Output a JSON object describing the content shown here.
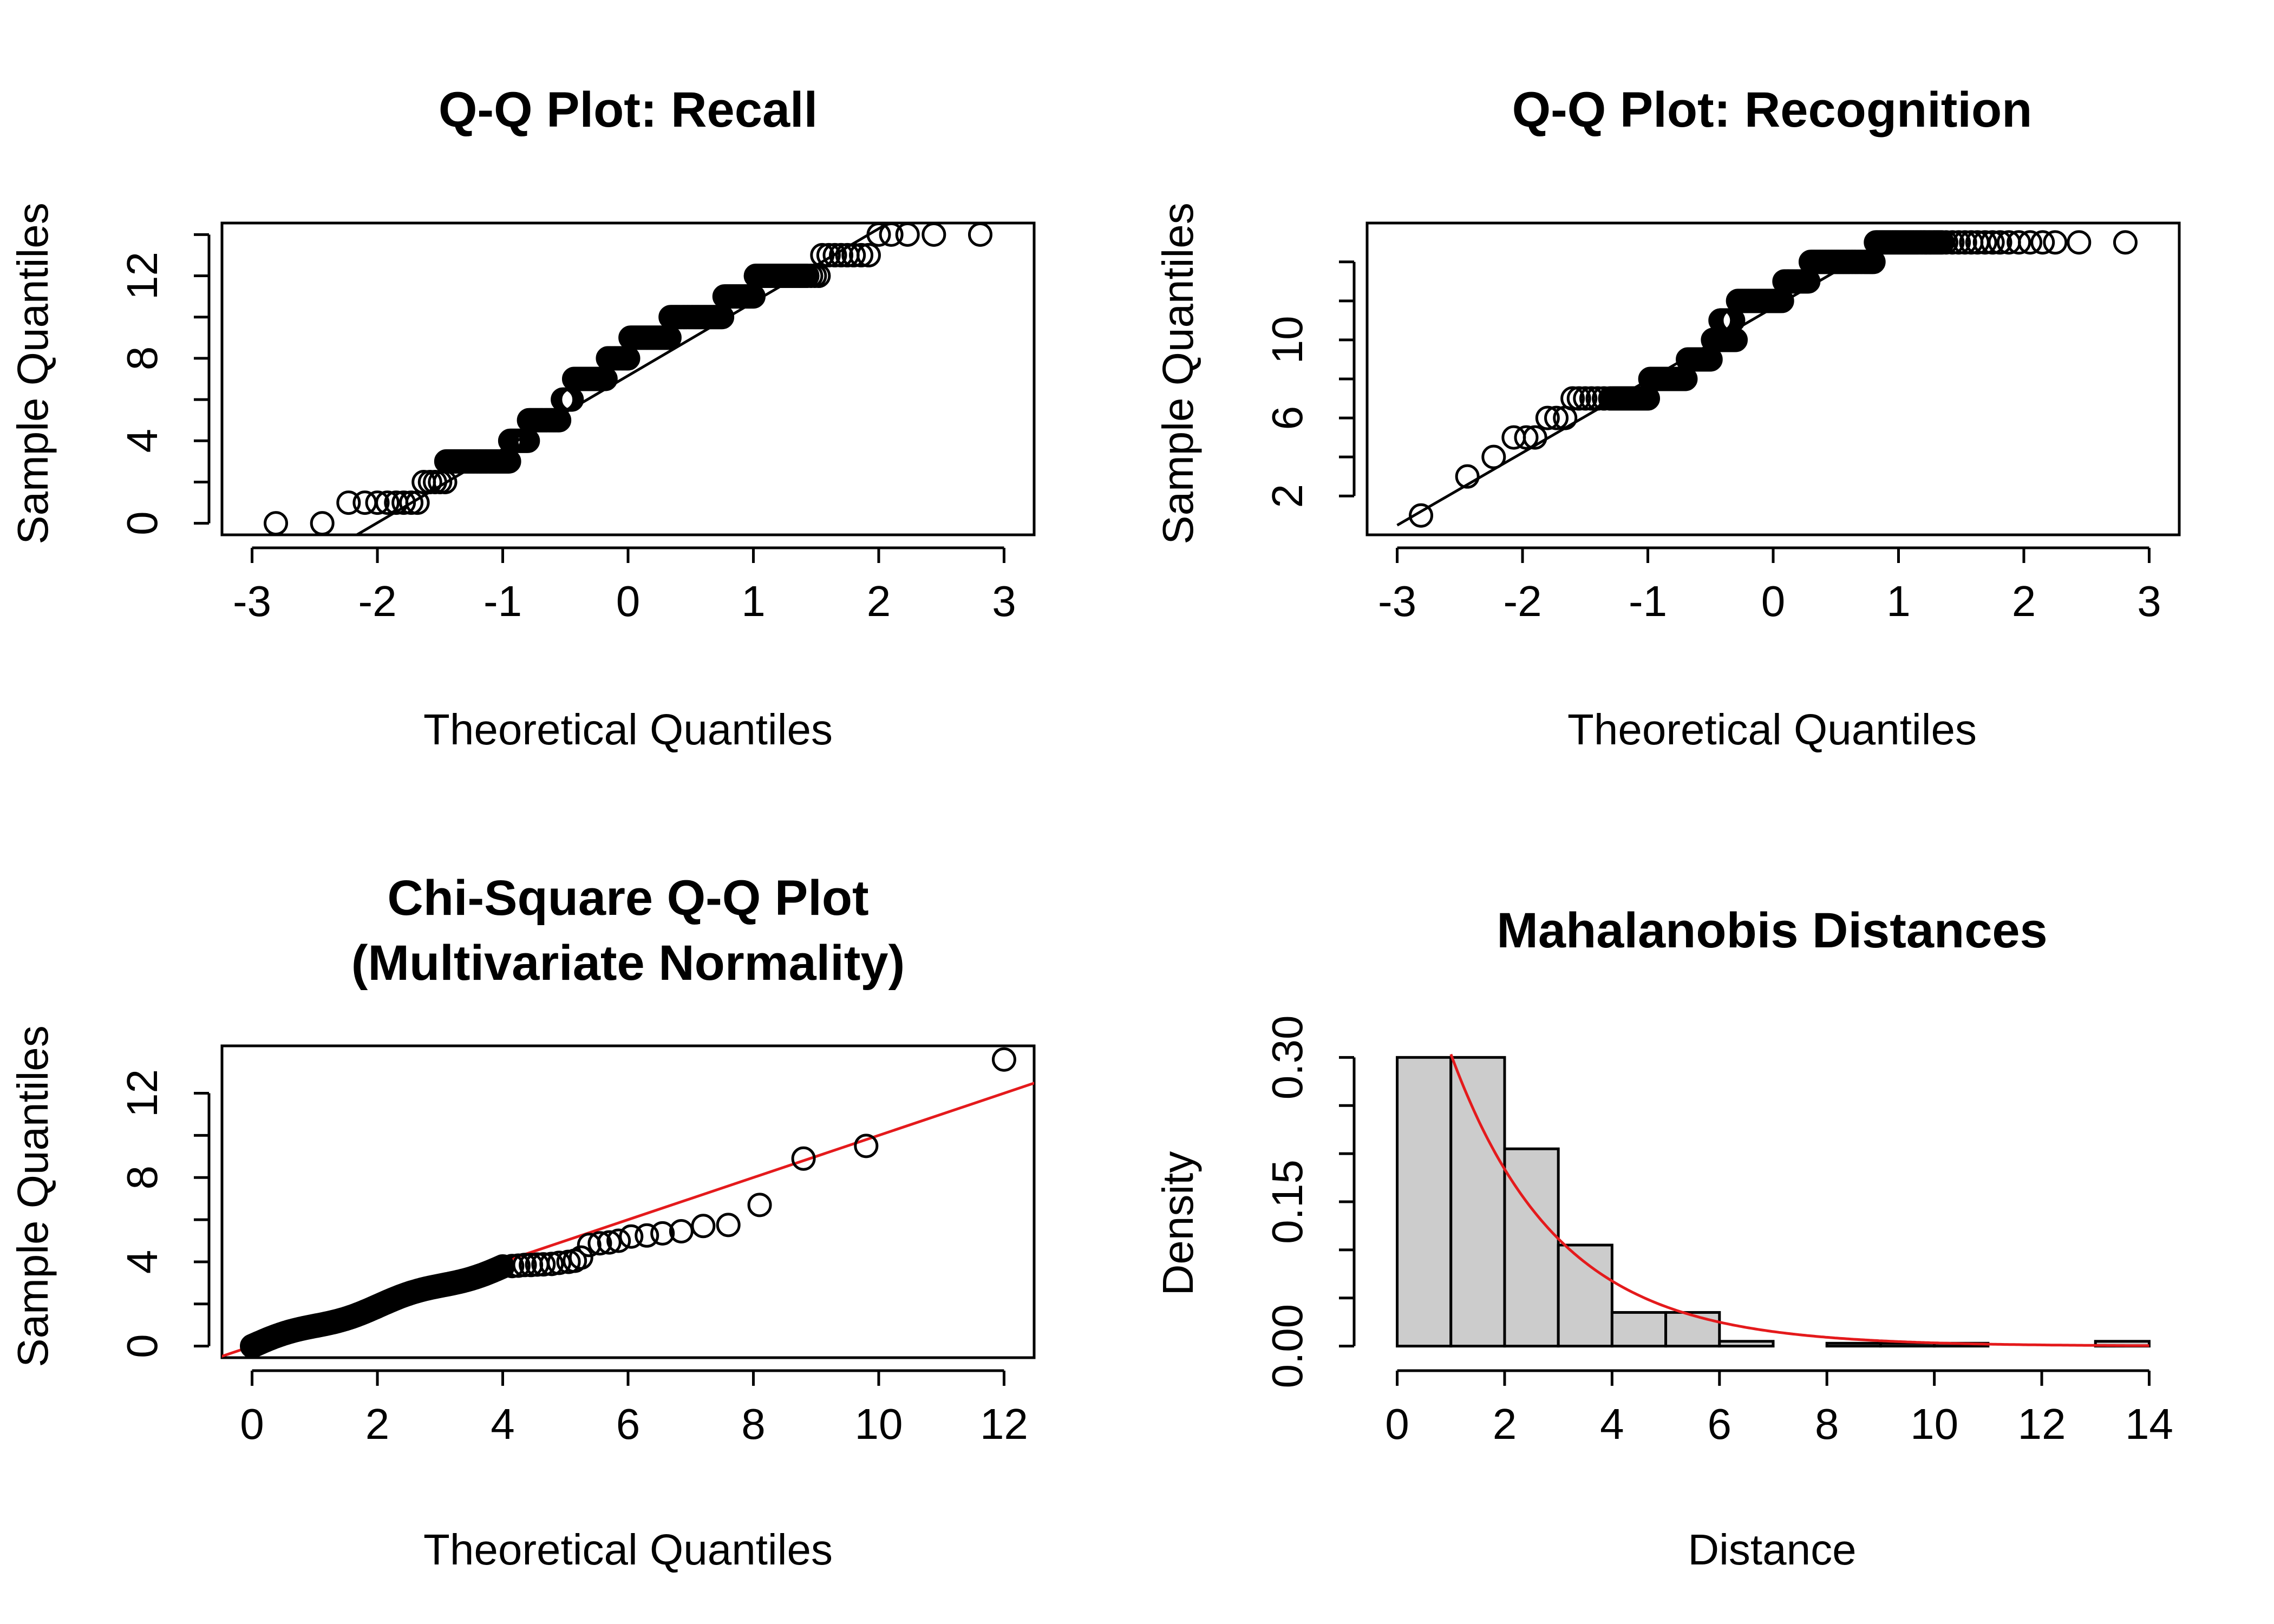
{
  "chart_data": [
    {
      "type": "scatter",
      "title": "Q-Q Plot: Recall",
      "xlabel": "Theoretical Quantiles",
      "ylabel": "Sample Quantiles",
      "xlim": [
        -3,
        3
      ],
      "ylim": [
        0,
        14
      ],
      "xticks": [
        "-3",
        "-2",
        "-1",
        "0",
        "1",
        "2",
        "3"
      ],
      "yticks": [
        "0",
        "4",
        "8",
        "12"
      ],
      "ytick_values": [
        0,
        4,
        8,
        12
      ],
      "yminor_ticks": [
        2,
        6,
        10,
        14
      ],
      "reference_line": {
        "x": [
          -2.4,
          2.2
        ],
        "y": [
          -1.4,
          15.0
        ],
        "color": "#000000"
      },
      "value_groups": [
        {
          "value": 0,
          "x": [
            -2.81,
            -2.44
          ]
        },
        {
          "value": 1,
          "x": [
            -2.23,
            -2.1,
            -2.0,
            -1.92,
            -1.85,
            -1.79,
            -1.73,
            -1.68
          ]
        },
        {
          "value": 2,
          "x": [
            -1.63,
            -1.58,
            -1.54,
            -1.5,
            -1.46
          ]
        },
        {
          "value": 3,
          "from": -1.45,
          "to": -0.95
        },
        {
          "value": 4,
          "from": -0.94,
          "to": -0.8
        },
        {
          "value": 5,
          "from": -0.79,
          "to": -0.55
        },
        {
          "value": 6,
          "from": -0.52,
          "to": -0.45
        },
        {
          "value": 7,
          "from": -0.43,
          "to": -0.18
        },
        {
          "value": 8,
          "from": -0.16,
          "to": 0.0
        },
        {
          "value": 9,
          "from": 0.02,
          "to": 0.33
        },
        {
          "value": 10,
          "from": 0.34,
          "to": 0.75
        },
        {
          "value": 11,
          "from": 0.77,
          "to": 1.0
        },
        {
          "value": 12,
          "from": 1.02,
          "to": 1.43
        },
        {
          "value": 12,
          "x": [
            1.46,
            1.49,
            1.52
          ]
        },
        {
          "value": 13,
          "x": [
            1.55,
            1.6,
            1.65,
            1.7,
            1.75,
            1.8,
            1.86,
            1.92
          ]
        },
        {
          "value": 14,
          "x": [
            2.0,
            2.1,
            2.23,
            2.44,
            2.81
          ]
        }
      ]
    },
    {
      "type": "scatter",
      "title": "Q-Q Plot: Recognition",
      "xlabel": "Theoretical Quantiles",
      "ylabel": "Sample Quantiles",
      "xlim": [
        -3,
        3
      ],
      "ylim": [
        0.6,
        15.4
      ],
      "xticks": [
        "-3",
        "-2",
        "-1",
        "0",
        "1",
        "2",
        "3"
      ],
      "yticks": [
        "2",
        "6",
        "10"
      ],
      "ytick_values": [
        2,
        6,
        10
      ],
      "yminor_ticks": [
        4,
        8,
        12,
        14
      ],
      "reference_line": {
        "x": [
          -3.0,
          0.9
        ],
        "y": [
          0.5,
          15.0
        ],
        "color": "#000000"
      },
      "value_groups": [
        {
          "value": 1,
          "x": [
            -2.81
          ]
        },
        {
          "value": 3,
          "x": [
            -2.44
          ]
        },
        {
          "value": 4,
          "x": [
            -2.23
          ]
        },
        {
          "value": 5,
          "x": [
            -2.07,
            -1.97,
            -1.9
          ]
        },
        {
          "value": 6,
          "x": [
            -1.8,
            -1.73,
            -1.66
          ]
        },
        {
          "value": 7,
          "x": [
            -1.6,
            -1.55,
            -1.5,
            -1.45,
            -1.4,
            -1.35,
            -1.3
          ]
        },
        {
          "value": 7,
          "from": -1.28,
          "to": -1.0
        },
        {
          "value": 8,
          "from": -0.98,
          "to": -0.7
        },
        {
          "value": 9,
          "from": -0.68,
          "to": -0.5
        },
        {
          "value": 10,
          "from": -0.48,
          "to": -0.3
        },
        {
          "value": 11,
          "from": -0.42,
          "to": -0.32
        },
        {
          "value": 12,
          "from": -0.28,
          "to": 0.07
        },
        {
          "value": 13,
          "from": 0.09,
          "to": 0.28
        },
        {
          "value": 14,
          "from": 0.3,
          "to": 0.8
        },
        {
          "value": 15,
          "from": 0.82,
          "to": 1.35
        },
        {
          "value": 15,
          "x": [
            1.38,
            1.43,
            1.48,
            1.53,
            1.58,
            1.63,
            1.69,
            1.75,
            1.81,
            1.88,
            1.96,
            2.05,
            2.15,
            2.25,
            2.44,
            2.81
          ]
        }
      ]
    },
    {
      "type": "scatter",
      "title": "Chi-Square Q-Q Plot",
      "subtitle": "(Multivariate Normality)",
      "xlabel": "Theoretical Quantiles",
      "ylabel": "Sample Quantiles",
      "xlim": [
        0,
        12
      ],
      "ylim": [
        0,
        13.7
      ],
      "xticks": [
        "0",
        "2",
        "4",
        "6",
        "8",
        "10",
        "12"
      ],
      "yticks": [
        "0",
        "4",
        "8",
        "12"
      ],
      "ytick_values": [
        0,
        4,
        8,
        12
      ],
      "yminor_ticks": [
        2,
        6,
        10
      ],
      "reference_line": {
        "x": [
          -0.5,
          12.5
        ],
        "y": [
          -0.5,
          12.5
        ],
        "color": "#e41a1c"
      },
      "dense_curve": {
        "from": 0.0,
        "to": 4.0,
        "points": 150
      },
      "points": [
        [
          4.15,
          3.8
        ],
        [
          4.25,
          3.82
        ],
        [
          4.35,
          3.85
        ],
        [
          4.45,
          3.85
        ],
        [
          4.55,
          3.87
        ],
        [
          4.65,
          3.88
        ],
        [
          4.78,
          3.9
        ],
        [
          4.9,
          3.95
        ],
        [
          5.05,
          4.0
        ],
        [
          5.15,
          4.05
        ],
        [
          5.25,
          4.2
        ],
        [
          5.38,
          4.8
        ],
        [
          5.55,
          4.88
        ],
        [
          5.7,
          4.92
        ],
        [
          5.85,
          5.0
        ],
        [
          6.05,
          5.2
        ],
        [
          6.3,
          5.25
        ],
        [
          6.55,
          5.35
        ],
        [
          6.85,
          5.45
        ],
        [
          7.2,
          5.7
        ],
        [
          7.6,
          5.75
        ],
        [
          8.1,
          6.7
        ],
        [
          8.8,
          8.9
        ],
        [
          9.8,
          9.5
        ],
        [
          12.0,
          13.6
        ]
      ]
    },
    {
      "type": "bar",
      "title": "Mahalanobis Distances",
      "xlabel": "Distance",
      "ylabel": "Density",
      "xlim": [
        0,
        14
      ],
      "ylim": [
        0,
        0.3
      ],
      "xticks": [
        "0",
        "2",
        "4",
        "6",
        "8",
        "10",
        "12",
        "14"
      ],
      "yticks": [
        "0.00",
        "0.15",
        "0.30"
      ],
      "ytick_values": [
        0,
        0.15,
        0.3
      ],
      "yminor_ticks": [
        0.05,
        0.1,
        0.2,
        0.25
      ],
      "bin_edges": [
        0,
        1,
        2,
        3,
        4,
        5,
        6,
        7,
        8,
        9,
        10,
        11,
        12,
        13,
        14
      ],
      "values": [
        0.3,
        0.3,
        0.205,
        0.105,
        0.035,
        0.035,
        0.005,
        0.0,
        0.003,
        0.003,
        0.003,
        0.0,
        0.0,
        0.005
      ],
      "bar_color": "#cccccc",
      "density_curve": {
        "distribution": "chi-square",
        "df": 2,
        "from": 1.0,
        "to": 14,
        "color": "#e41a1c"
      }
    }
  ]
}
